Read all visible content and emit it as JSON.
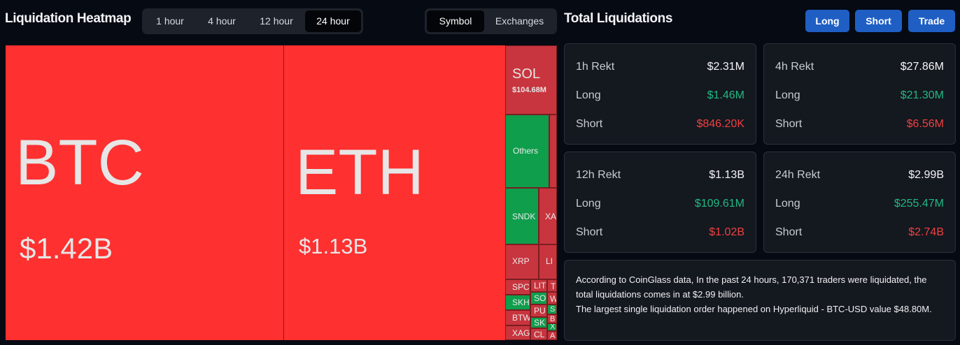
{
  "header": {
    "title": "Liquidation Heatmap",
    "time_options": [
      "1 hour",
      "4 hour",
      "12 hour",
      "24 hour"
    ],
    "time_selected": "24 hour",
    "view_options": [
      "Symbol",
      "Exchanges"
    ],
    "view_selected": "Symbol",
    "total_title": "Total Liquidations",
    "buttons": {
      "long": "Long",
      "short": "Short",
      "trade": "Trade"
    },
    "button_color": "#1f5fc4"
  },
  "heatmap": {
    "colors": {
      "liq_red": "#ff3030",
      "dark_red": "#c8353e",
      "green": "#0f9e4c"
    },
    "btc": {
      "symbol": "BTC",
      "value": "$1.42B"
    },
    "eth": {
      "symbol": "ETH",
      "value": "$1.13B"
    },
    "sol": {
      "symbol": "SOL",
      "value": "$104.68M"
    },
    "others": "Others",
    "sndk": "SNDK",
    "xag_partial": "XAG",
    "xrp": "XRP",
    "li_partial": "LI",
    "spc": "SPC",
    "lit": "LIT",
    "t_partial": "T",
    "skh": "SKH",
    "so": "SO",
    "w": "W",
    "pu": "PU",
    "s": "S",
    "btw": "BTW",
    "sk": "SK",
    "b": "B",
    "x": "X",
    "xag": "XAG",
    "cl": "CL",
    "a": "A"
  },
  "stats": {
    "labels": {
      "long": "Long",
      "short": "Short"
    },
    "h1": {
      "title": "1h Rekt",
      "total": "$2.31M",
      "long": "$1.46M",
      "short": "$846.20K"
    },
    "h4": {
      "title": "4h Rekt",
      "total": "$27.86M",
      "long": "$21.30M",
      "short": "$6.56M"
    },
    "h12": {
      "title": "12h Rekt",
      "total": "$1.13B",
      "long": "$109.61M",
      "short": "$1.02B"
    },
    "h24": {
      "title": "24h Rekt",
      "total": "$2.99B",
      "long": "$255.47M",
      "short": "$2.74B"
    },
    "colors": {
      "long": "#22b883",
      "short": "#f04040"
    }
  },
  "info": {
    "line1": "According to CoinGlass data, In the past 24 hours, 170,371 traders were liquidated, the total liquidations comes in at $2.99 billion.",
    "line2": "The largest single liquidation order happened on Hyperliquid - BTC-USD value $48.80M."
  }
}
